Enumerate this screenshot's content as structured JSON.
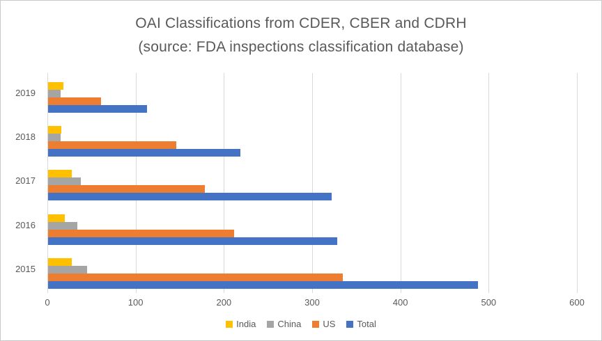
{
  "title": {
    "line1": "OAI Classifications from CDER, CBER and CDRH",
    "line2": "(source: FDA inspections classification database)"
  },
  "chart_data": {
    "type": "bar",
    "orientation": "horizontal",
    "title": "OAI Classifications from CDER, CBER and CDRH (source: FDA inspections classification database)",
    "categories": [
      "2019",
      "2018",
      "2017",
      "2016",
      "2015"
    ],
    "series": [
      {
        "name": "India",
        "color": "#FFC000",
        "values": [
          17,
          15,
          27,
          19,
          27
        ]
      },
      {
        "name": "China",
        "color": "#A5A5A5",
        "values": [
          14,
          14,
          37,
          33,
          44
        ]
      },
      {
        "name": "US",
        "color": "#ED7D31",
        "values": [
          60,
          145,
          178,
          211,
          334
        ]
      },
      {
        "name": "Total",
        "color": "#4472C4",
        "values": [
          112,
          218,
          321,
          328,
          487
        ]
      }
    ],
    "x_axis": {
      "min": 0,
      "max": 600,
      "tick_step": 100,
      "tick_labels": [
        "0",
        "100",
        "200",
        "300",
        "400",
        "500",
        "600"
      ]
    },
    "grid": true,
    "legend_position": "bottom",
    "colors": {
      "text": "#595959",
      "gridline": "#D9D9D9",
      "background": "#FFFFFF",
      "border": "#C9C9C9"
    }
  }
}
